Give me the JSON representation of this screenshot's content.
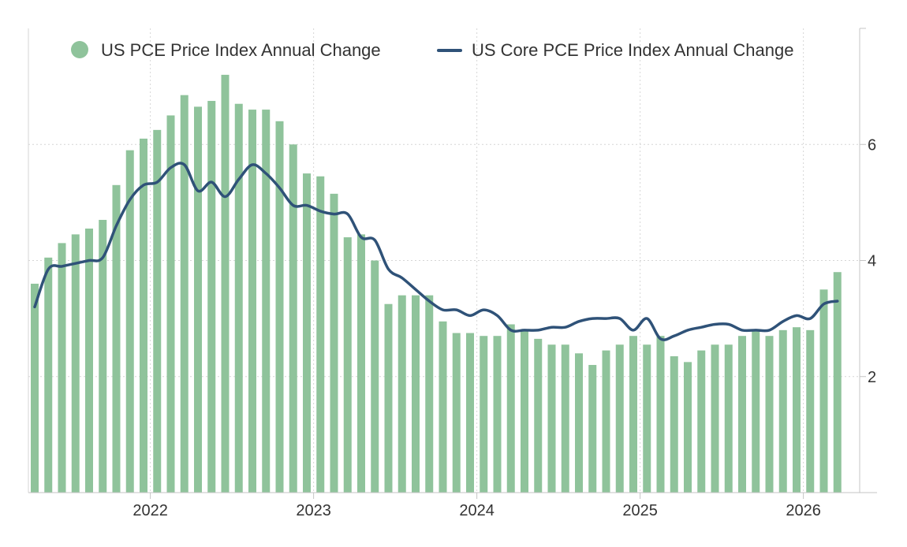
{
  "chart_data": {
    "type": "bar",
    "title": "",
    "xlabel": "",
    "ylabel": "",
    "ylim": [
      0,
      8
    ],
    "y_ticks": [
      "2",
      "4",
      "6"
    ],
    "y_tick_values": [
      2,
      4,
      6
    ],
    "x_ticks": [
      "2022",
      "2023",
      "2024",
      "2025",
      "2026"
    ],
    "x_tick_months": [
      "2022-01",
      "2023-01",
      "2024-01",
      "2025-01",
      "2026-01"
    ],
    "grid": true,
    "legend_position": "top",
    "colors": {
      "bar": "#8fc39b",
      "line": "#2f5278",
      "grid": "#d6d6d6",
      "axis": "#c4c4c4"
    },
    "x": [
      "2021-04",
      "2021-05",
      "2021-06",
      "2021-07",
      "2021-08",
      "2021-09",
      "2021-10",
      "2021-11",
      "2021-12",
      "2022-01",
      "2022-02",
      "2022-03",
      "2022-04",
      "2022-05",
      "2022-06",
      "2022-07",
      "2022-08",
      "2022-09",
      "2022-10",
      "2022-11",
      "2022-12",
      "2023-01",
      "2023-02",
      "2023-03",
      "2023-04",
      "2023-05",
      "2023-06",
      "2023-07",
      "2023-08",
      "2023-09",
      "2023-10",
      "2023-11",
      "2023-12",
      "2024-01",
      "2024-02",
      "2024-03",
      "2024-04",
      "2024-05",
      "2024-06",
      "2024-07",
      "2024-08",
      "2024-09",
      "2024-10",
      "2024-11",
      "2024-12",
      "2025-01",
      "2025-02",
      "2025-03",
      "2025-04",
      "2025-05",
      "2025-06",
      "2025-07",
      "2025-08",
      "2025-09",
      "2025-10",
      "2025-11",
      "2025-12",
      "2026-01",
      "2026-02",
      "2026-03"
    ],
    "series": [
      {
        "name": "US PCE Price Index Annual Change",
        "type": "bar",
        "values": [
          3.6,
          4.05,
          4.3,
          4.45,
          4.55,
          4.7,
          5.3,
          5.9,
          6.1,
          6.25,
          6.5,
          6.85,
          6.65,
          6.75,
          7.2,
          6.7,
          6.6,
          6.6,
          6.4,
          6.0,
          5.5,
          5.45,
          5.15,
          4.4,
          4.45,
          4.0,
          3.25,
          3.4,
          3.4,
          3.4,
          2.95,
          2.75,
          2.75,
          2.7,
          2.7,
          2.9,
          2.8,
          2.65,
          2.55,
          2.55,
          2.4,
          2.2,
          2.45,
          2.55,
          2.7,
          2.55,
          2.7,
          2.35,
          2.25,
          2.45,
          2.55,
          2.55,
          2.7,
          2.8,
          2.7,
          2.8,
          2.85,
          2.8,
          3.5,
          3.8
        ]
      },
      {
        "name": "US Core PCE Price Index Annual Change",
        "type": "line",
        "values": [
          3.2,
          3.85,
          3.9,
          3.95,
          4.0,
          4.05,
          4.6,
          5.05,
          5.3,
          5.35,
          5.6,
          5.65,
          5.2,
          5.35,
          5.1,
          5.4,
          5.65,
          5.5,
          5.25,
          4.95,
          4.95,
          4.85,
          4.8,
          4.8,
          4.4,
          4.35,
          3.85,
          3.7,
          3.5,
          3.3,
          3.15,
          3.15,
          3.05,
          3.15,
          3.05,
          2.8,
          2.8,
          2.8,
          2.85,
          2.85,
          2.95,
          3.0,
          3.0,
          3.0,
          2.8,
          3.0,
          2.65,
          2.7,
          2.8,
          2.85,
          2.9,
          2.9,
          2.8,
          2.8,
          2.8,
          2.95,
          3.05,
          3.0,
          3.25,
          3.3
        ]
      }
    ]
  }
}
